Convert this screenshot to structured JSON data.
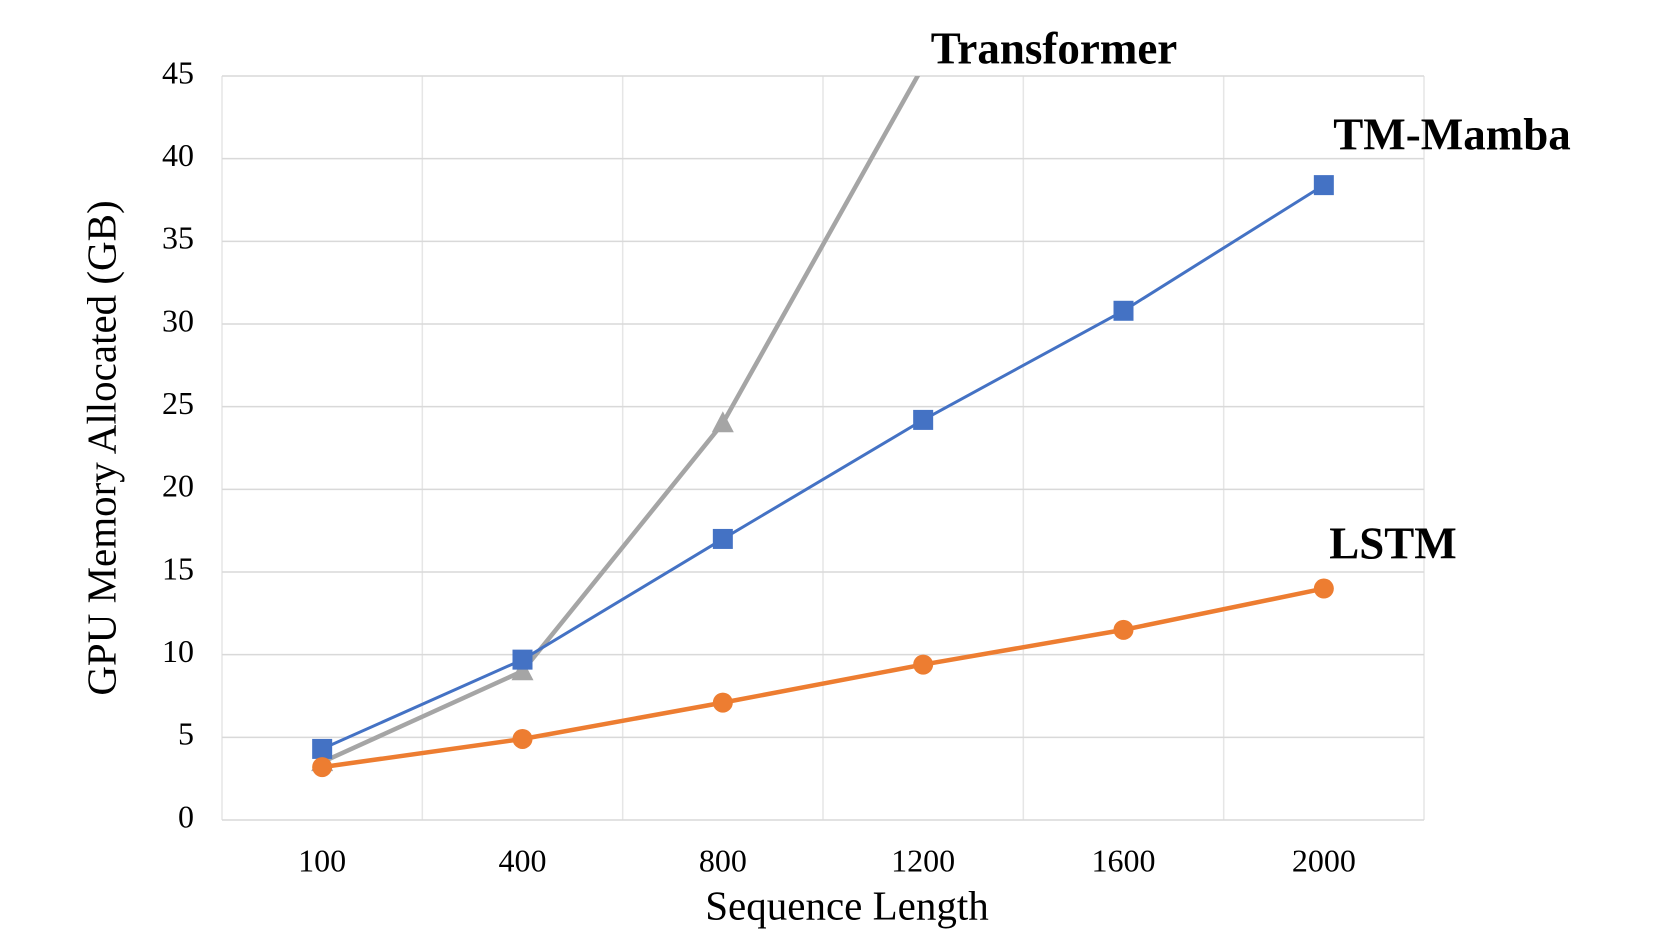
{
  "chart_data": {
    "type": "line",
    "x_label": "Sequence Length",
    "y_label": "GPU Memory Allocated (GB)",
    "categories": [
      "100",
      "400",
      "800",
      "1200",
      "1600",
      "2000"
    ],
    "series": [
      {
        "name": "Transformer",
        "color": "#a5a5a5",
        "marker": "triangle",
        "values": [
          3.5,
          9.0,
          24.0,
          45.6,
          null,
          null
        ]
      },
      {
        "name": "TM-Mamba",
        "color": "#4472c4",
        "marker": "square",
        "values": [
          4.3,
          9.7,
          17.0,
          24.2,
          30.8,
          38.4
        ]
      },
      {
        "name": "LSTM",
        "color": "#ed7d31",
        "marker": "circle",
        "values": [
          3.2,
          4.9,
          7.1,
          9.4,
          11.5,
          14.0
        ]
      }
    ],
    "ylim": [
      0,
      45
    ],
    "yticks": [
      0,
      5,
      10,
      15,
      20,
      25,
      30,
      35,
      40,
      45
    ],
    "grid": true
  }
}
